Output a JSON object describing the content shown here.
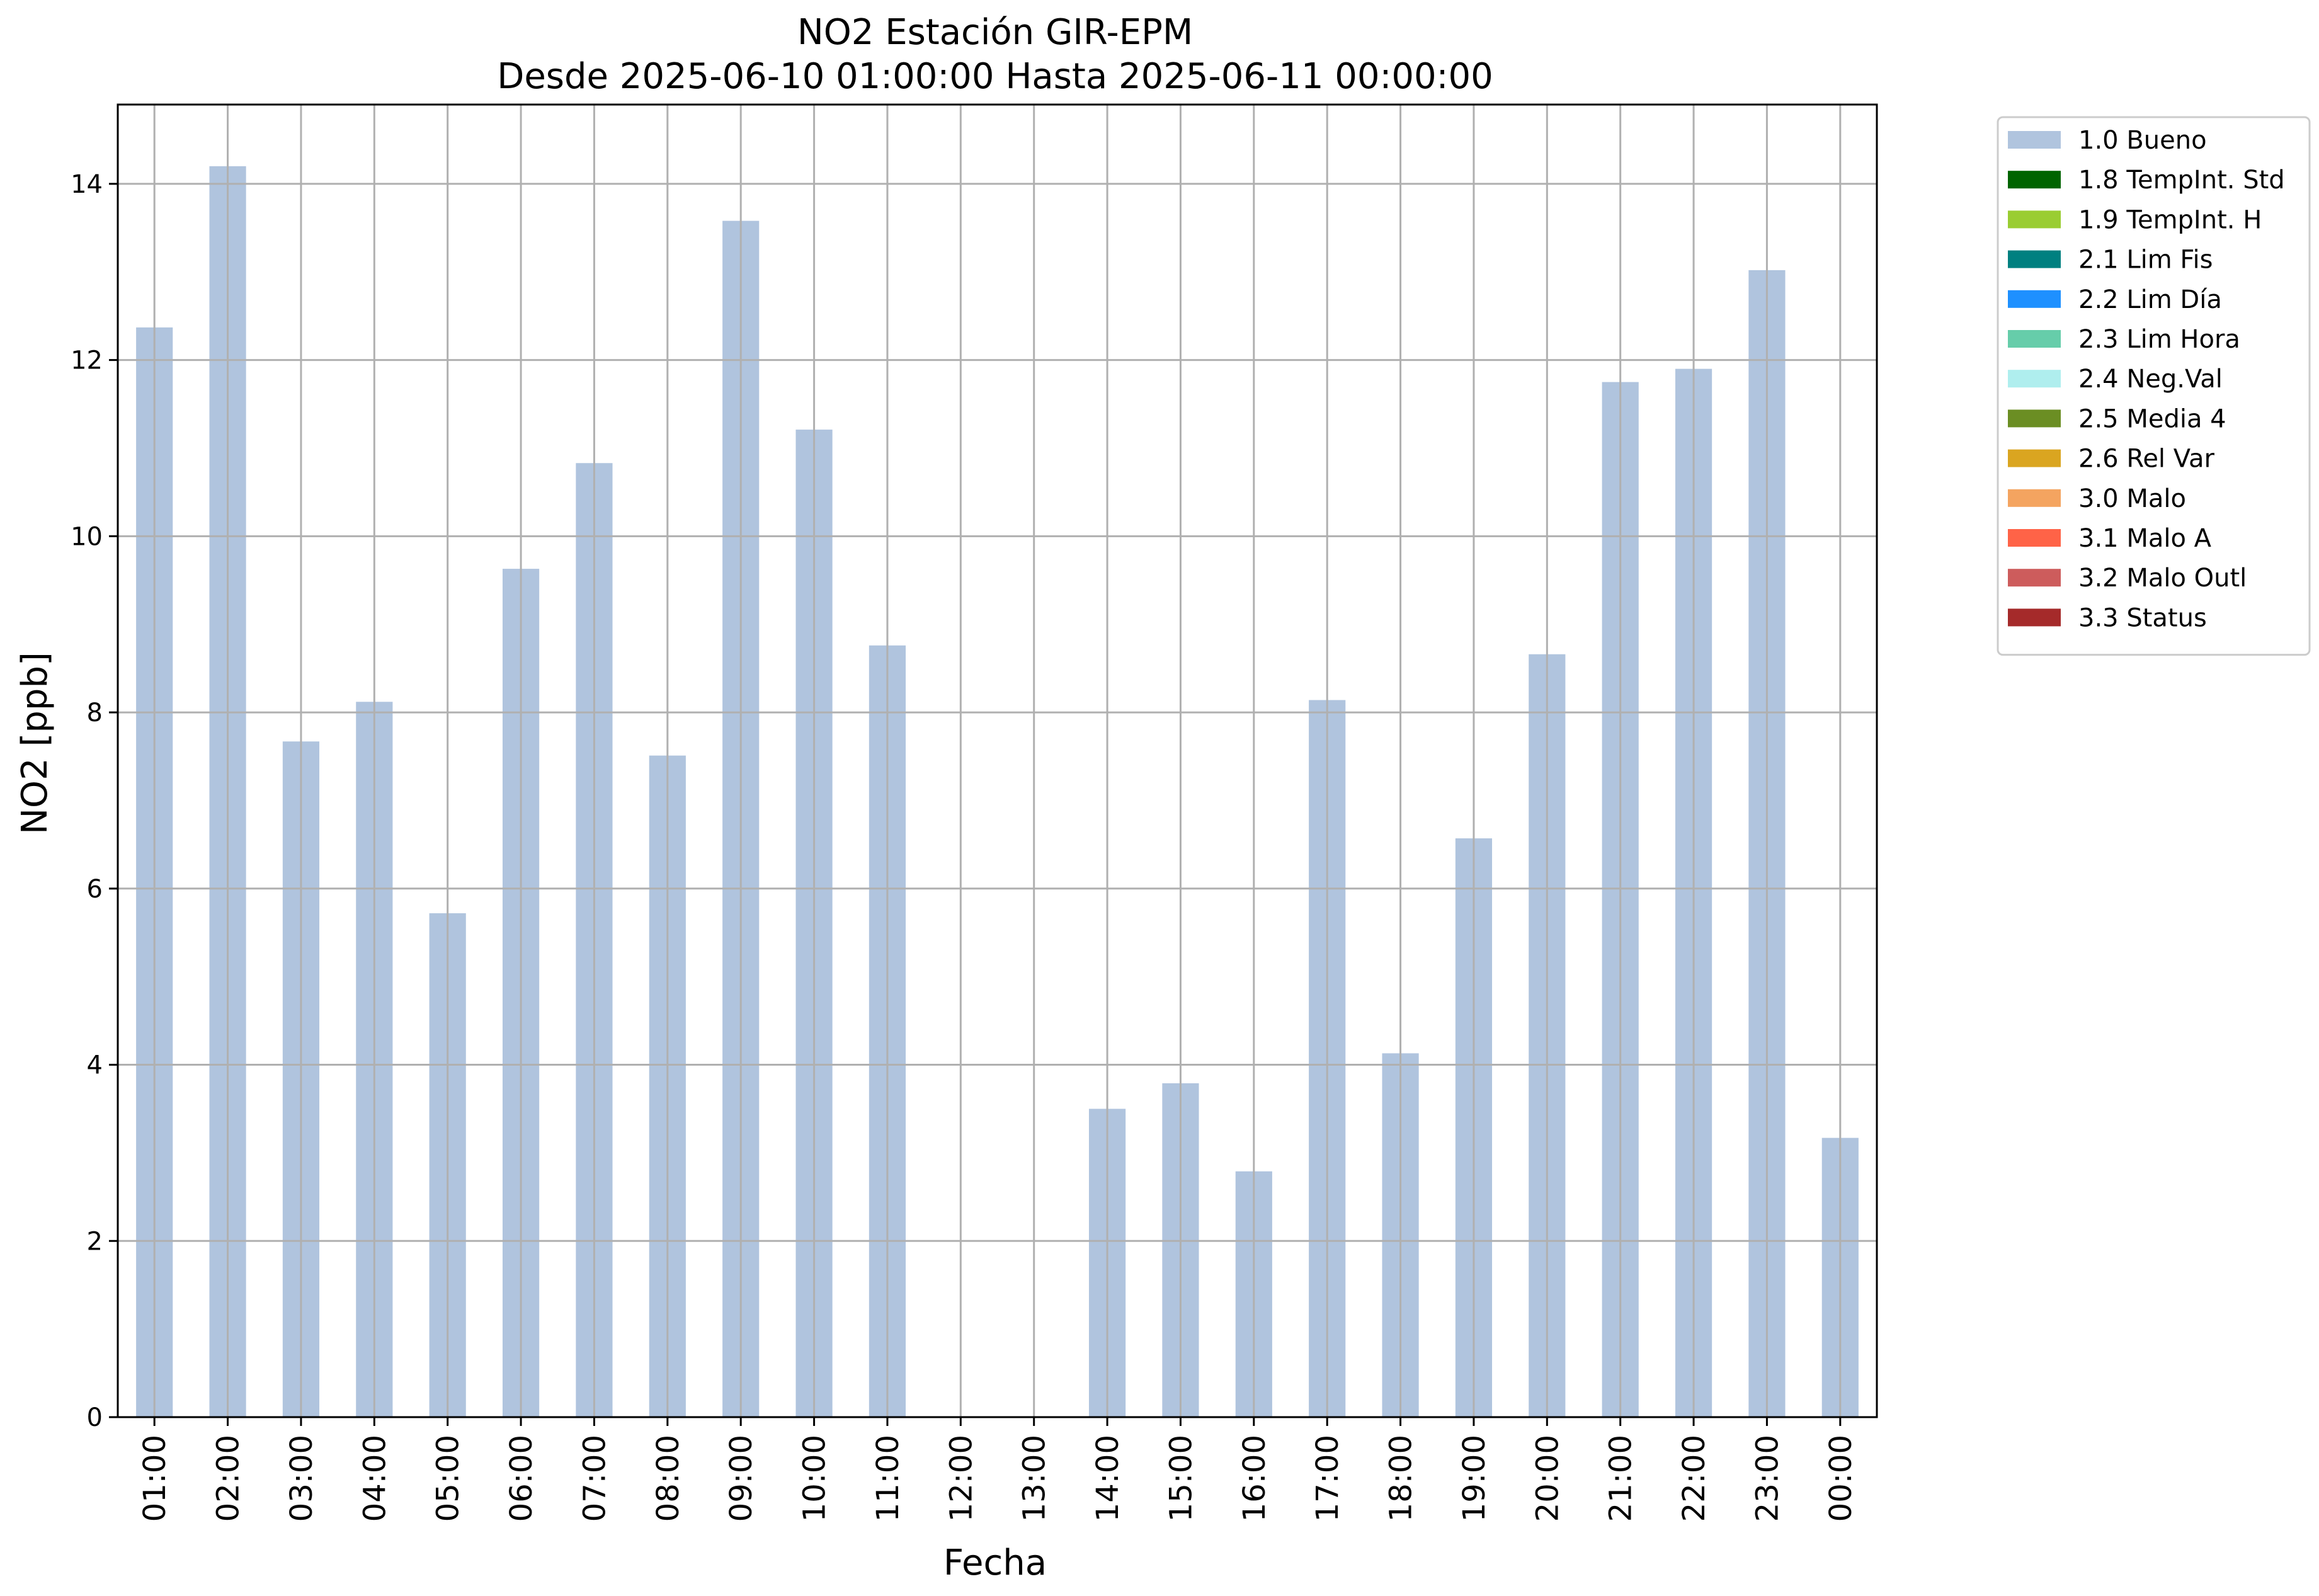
{
  "chart_data": {
    "type": "bar",
    "title": "NO2 Estación GIR-EPM",
    "subtitle": "Desde 2025-06-10 01:00:00 Hasta 2025-06-11 00:00:00",
    "xlabel": "Fecha",
    "ylabel": "NO2 [ppb]",
    "ylim": [
      0,
      14.9
    ],
    "yticks": [
      "0",
      "2",
      "4",
      "6",
      "8",
      "10",
      "12",
      "14"
    ],
    "grid": true,
    "legend_position": "outside-top-right",
    "categories": [
      "01:00",
      "02:00",
      "03:00",
      "04:00",
      "05:00",
      "06:00",
      "07:00",
      "08:00",
      "09:00",
      "10:00",
      "11:00",
      "12:00",
      "13:00",
      "14:00",
      "15:00",
      "16:00",
      "17:00",
      "18:00",
      "19:00",
      "20:00",
      "21:00",
      "22:00",
      "23:00",
      "00:00"
    ],
    "series": [
      {
        "name": "1.0 Bueno",
        "color": "#b0c4de",
        "values": [
          12.37,
          14.2,
          7.67,
          8.12,
          5.72,
          9.63,
          10.83,
          7.51,
          13.58,
          11.21,
          8.76,
          null,
          null,
          3.5,
          3.79,
          2.79,
          8.14,
          4.13,
          6.57,
          8.66,
          11.75,
          11.9,
          13.02,
          3.17
        ]
      }
    ],
    "legend": [
      {
        "label": "1.0 Bueno",
        "color": "#b0c4de"
      },
      {
        "label": "1.8 TempInt. Std",
        "color": "#006400"
      },
      {
        "label": "1.9 TempInt. H",
        "color": "#9acd32"
      },
      {
        "label": "2.1 Lim Fis",
        "color": "#008080"
      },
      {
        "label": "2.2 Lim Día",
        "color": "#1e90ff"
      },
      {
        "label": "2.3 Lim Hora",
        "color": "#66cdaa"
      },
      {
        "label": "2.4 Neg.Val",
        "color": "#afeeee"
      },
      {
        "label": "2.5 Media 4",
        "color": "#6b8e23"
      },
      {
        "label": "2.6 Rel Var",
        "color": "#daa520"
      },
      {
        "label": "3.0 Malo",
        "color": "#f4a460"
      },
      {
        "label": "3.1 Malo A",
        "color": "#ff6347"
      },
      {
        "label": "3.2 Malo Outl",
        "color": "#cd5c5c"
      },
      {
        "label": "3.3 Status",
        "color": "#a52a2a"
      }
    ]
  }
}
